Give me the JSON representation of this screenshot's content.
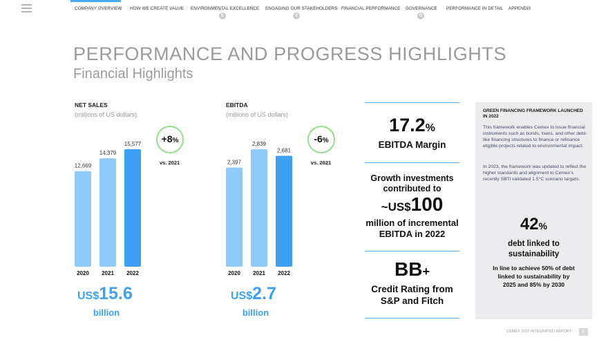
{
  "nav": {
    "items": [
      "COMPANY OVERVIEW",
      "HOW WE CREATE VALUE",
      "ENVIRONMENTAL EXCELLENCE",
      "ENGAGING OUR STAKEHOLDERS",
      "FINANCIAL PERFORMANCE",
      "GOVERNANCE",
      "PERFORMANCE IN DETAIL",
      "APPENDIX"
    ],
    "badges": [
      "E",
      "S",
      "G"
    ]
  },
  "header": {
    "title": "PERFORMANCE AND PROGRESS HIGHLIGHTS",
    "subtitle": "Financial Highlights"
  },
  "chart_data": [
    {
      "type": "bar",
      "title": "NET SALES",
      "ylabel": "(millions of US dollars)",
      "categories": [
        "2020",
        "2021",
        "2022"
      ],
      "values": [
        12669,
        14379,
        15577
      ],
      "value_labels": [
        "12,669",
        "14,379",
        "15,577"
      ],
      "bar_colors": [
        "#8ecbfa",
        "#8ecbfa",
        "#3da0f2"
      ],
      "ylim": [
        0,
        15577
      ],
      "change": "+8",
      "change_unit": "%",
      "change_vs": "vs. 2021",
      "total_currency": "US$",
      "total_value": "15.6",
      "total_unit": "billion"
    },
    {
      "type": "bar",
      "title": "EBITDA",
      "ylabel": "(millions of US dollars)",
      "categories": [
        "2020",
        "2021",
        "2022"
      ],
      "values": [
        2397,
        2839,
        2681
      ],
      "value_labels": [
        "2,397",
        "2,839",
        "2,681"
      ],
      "bar_colors": [
        "#8ecbfa",
        "#8ecbfa",
        "#3da0f2"
      ],
      "ylim": [
        0,
        2839
      ],
      "change": "-6",
      "change_unit": "%",
      "change_vs": "vs. 2021",
      "total_currency": "US$",
      "total_value": "2.7",
      "total_unit": "billion"
    }
  ],
  "kpis": {
    "margin_value": "17.2",
    "margin_unit": "%",
    "margin_label": "EBITDA Margin",
    "growth_intro_1": "Growth investments",
    "growth_intro_2": "contributed to",
    "growth_prefix": "~US$",
    "growth_value": "100",
    "growth_label_1": "million of incremental",
    "growth_label_2": "EBITDA in 2022",
    "rating_value": "BB",
    "rating_suffix": "+",
    "rating_label_1": "Credit Rating from",
    "rating_label_2": "S&P and Fitch"
  },
  "sidebar": {
    "heading": "GREEN FINANCING FRAMEWORK LAUNCHED IN 2022",
    "para1": "This framework enables Cemex to issue financial instruments such as bonds, loans, and other debt-like financing structures to finance or refinance eligible projects related to environmental impact.",
    "para2": "In 2023, the framework was updated to reflect the higher standards and alignment to Cemex's recently SBTi validated 1.5°C scenario targets.",
    "pct_value": "42",
    "pct_unit": "%",
    "pct_label_1": "debt linked to",
    "pct_label_2": "sustainability",
    "target_text": "In line to achieve 50% of debt linked to sustainability by 2025 and 85% by 2030"
  },
  "footer": {
    "report": "CEMEX 2022 INTEGRATED REPORT",
    "page": "6"
  }
}
